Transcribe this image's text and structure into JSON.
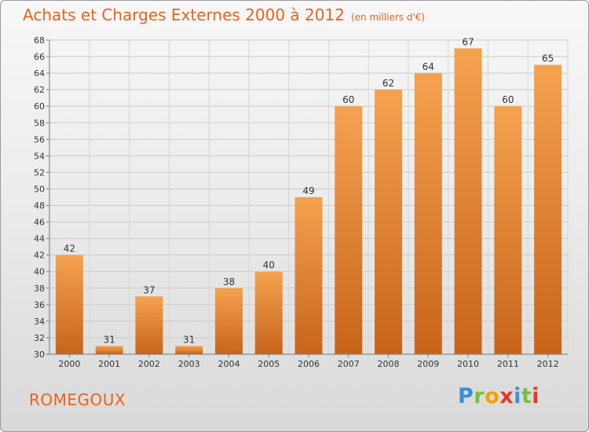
{
  "title": "Achats et Charges Externes 2000 à 2012",
  "unit_note": "(en milliers d'€)",
  "location": "ROMEGOUX",
  "brand": {
    "letters": [
      "P",
      "r",
      "o",
      "x",
      "i",
      "t",
      "i"
    ]
  },
  "colors": {
    "accent": "#e8631a",
    "bar_top": "#f5a24f",
    "bar_bottom": "#c8641a"
  },
  "chart_data": {
    "type": "bar",
    "categories": [
      "2000",
      "2001",
      "2002",
      "2003",
      "2004",
      "2005",
      "2006",
      "2007",
      "2008",
      "2009",
      "2010",
      "2011",
      "2012"
    ],
    "values": [
      42,
      31,
      37,
      31,
      38,
      40,
      49,
      60,
      62,
      64,
      67,
      60,
      65
    ],
    "title": "Achats et Charges Externes 2000 à 2012",
    "ylim": [
      30,
      68
    ],
    "yticks": [
      30,
      32,
      34,
      36,
      38,
      40,
      42,
      44,
      46,
      48,
      50,
      52,
      54,
      56,
      58,
      60,
      62,
      64,
      66,
      68
    ],
    "grid": true,
    "data_labels": true
  }
}
